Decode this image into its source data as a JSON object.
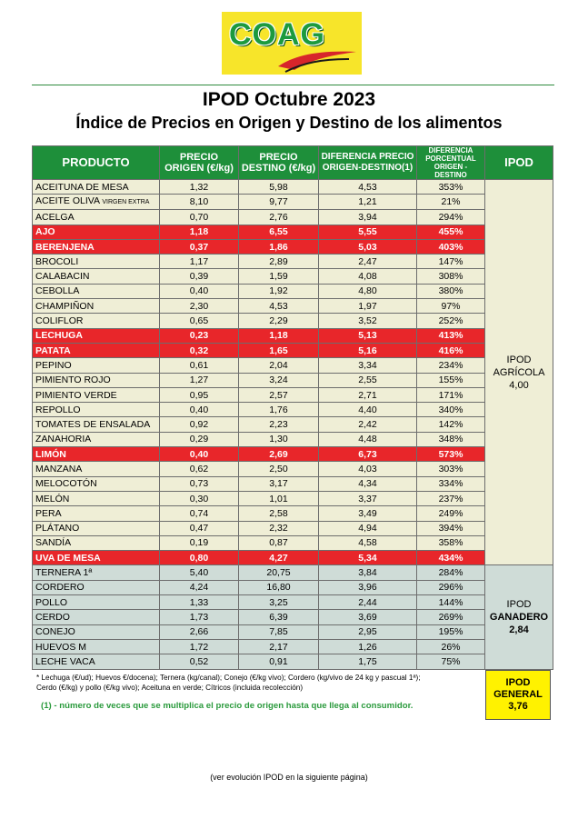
{
  "logo": {
    "text": "COAG"
  },
  "title": "IPOD Octubre 2023",
  "subtitle": "Índice de Precios en Origen y Destino de los alimentos",
  "headers": {
    "producto": "PRODUCTO",
    "origen_1": "PRECIO",
    "origen_2": "ORIGEN (€/kg)",
    "destino_1": "PRECIO",
    "destino_2": "DESTINO (€/kg)",
    "dif_1": "DIFERENCIA PRECIO",
    "dif_2": "ORIGEN-DESTINO(1)",
    "pct_1": "DIFERENCIA",
    "pct_2": "PORCENTUAL",
    "pct_3": "ORIGEN - DESTINO",
    "ipod": "IPOD"
  },
  "agricola_rows": [
    {
      "producto": "ACEITUNA DE MESA",
      "origen": "1,32",
      "destino": "5,98",
      "dif": "4,53",
      "pct": "353%",
      "hl": false
    },
    {
      "producto": "ACEITE OLIVA",
      "producto_small": "VIRGEN EXTRA",
      "origen": "8,10",
      "destino": "9,77",
      "dif": "1,21",
      "pct": "21%",
      "hl": false
    },
    {
      "producto": "ACELGA",
      "origen": "0,70",
      "destino": "2,76",
      "dif": "3,94",
      "pct": "294%",
      "hl": false
    },
    {
      "producto": "AJO",
      "origen": "1,18",
      "destino": "6,55",
      "dif": "5,55",
      "pct": "455%",
      "hl": true
    },
    {
      "producto": "BERENJENA",
      "origen": "0,37",
      "destino": "1,86",
      "dif": "5,03",
      "pct": "403%",
      "hl": true
    },
    {
      "producto": "BROCOLI",
      "origen": "1,17",
      "destino": "2,89",
      "dif": "2,47",
      "pct": "147%",
      "hl": false
    },
    {
      "producto": "CALABACIN",
      "origen": "0,39",
      "destino": "1,59",
      "dif": "4,08",
      "pct": "308%",
      "hl": false
    },
    {
      "producto": "CEBOLLA",
      "origen": "0,40",
      "destino": "1,92",
      "dif": "4,80",
      "pct": "380%",
      "hl": false
    },
    {
      "producto": "CHAMPIÑON",
      "origen": "2,30",
      "destino": "4,53",
      "dif": "1,97",
      "pct": "97%",
      "hl": false
    },
    {
      "producto": "COLIFLOR",
      "origen": "0,65",
      "destino": "2,29",
      "dif": "3,52",
      "pct": "252%",
      "hl": false
    },
    {
      "producto": "LECHUGA",
      "origen": "0,23",
      "destino": "1,18",
      "dif": "5,13",
      "pct": "413%",
      "hl": true
    },
    {
      "producto": "PATATA",
      "origen": "0,32",
      "destino": "1,65",
      "dif": "5,16",
      "pct": "416%",
      "hl": true
    },
    {
      "producto": "PEPINO",
      "origen": "0,61",
      "destino": "2,04",
      "dif": "3,34",
      "pct": "234%",
      "hl": false
    },
    {
      "producto": "PIMIENTO ROJO",
      "origen": "1,27",
      "destino": "3,24",
      "dif": "2,55",
      "pct": "155%",
      "hl": false
    },
    {
      "producto": "PIMIENTO VERDE",
      "origen": "0,95",
      "destino": "2,57",
      "dif": "2,71",
      "pct": "171%",
      "hl": false
    },
    {
      "producto": "REPOLLO",
      "origen": "0,40",
      "destino": "1,76",
      "dif": "4,40",
      "pct": "340%",
      "hl": false
    },
    {
      "producto": "TOMATES DE ENSALADA",
      "origen": "0,92",
      "destino": "2,23",
      "dif": "2,42",
      "pct": "142%",
      "hl": false
    },
    {
      "producto": "ZANAHORIA",
      "origen": "0,29",
      "destino": "1,30",
      "dif": "4,48",
      "pct": "348%",
      "hl": false
    },
    {
      "producto": "LIMÓN",
      "origen": "0,40",
      "destino": "2,69",
      "dif": "6,73",
      "pct": "573%",
      "hl": true
    },
    {
      "producto": "MANZANA",
      "origen": "0,62",
      "destino": "2,50",
      "dif": "4,03",
      "pct": "303%",
      "hl": false
    },
    {
      "producto": "MELOCOTÓN",
      "origen": "0,73",
      "destino": "3,17",
      "dif": "4,34",
      "pct": "334%",
      "hl": false
    },
    {
      "producto": "MELÓN",
      "origen": "0,30",
      "destino": "1,01",
      "dif": "3,37",
      "pct": "237%",
      "hl": false
    },
    {
      "producto": "PERA",
      "origen": "0,74",
      "destino": "2,58",
      "dif": "3,49",
      "pct": "249%",
      "hl": false
    },
    {
      "producto": "PLÁTANO",
      "origen": "0,47",
      "destino": "2,32",
      "dif": "4,94",
      "pct": "394%",
      "hl": false
    },
    {
      "producto": "SANDÍA",
      "origen": "0,19",
      "destino": "0,87",
      "dif": "4,58",
      "pct": "358%",
      "hl": false
    },
    {
      "producto": "UVA DE MESA",
      "origen": "0,80",
      "destino": "4,27",
      "dif": "5,34",
      "pct": "434%",
      "hl": true
    }
  ],
  "ganadero_rows": [
    {
      "producto": "TERNERA 1ª",
      "origen": "5,40",
      "destino": "20,75",
      "dif": "3,84",
      "pct": "284%"
    },
    {
      "producto": "CORDERO",
      "origen": "4,24",
      "destino": "16,80",
      "dif": "3,96",
      "pct": "296%"
    },
    {
      "producto": "POLLO",
      "origen": "1,33",
      "destino": "3,25",
      "dif": "2,44",
      "pct": "144%"
    },
    {
      "producto": "CERDO",
      "origen": "1,73",
      "destino": "6,39",
      "dif": "3,69",
      "pct": "269%"
    },
    {
      "producto": "CONEJO",
      "origen": "2,66",
      "destino": "7,85",
      "dif": "2,95",
      "pct": "195%"
    },
    {
      "producto": "HUEVOS M",
      "origen": "1,72",
      "destino": "2,17",
      "dif": "1,26",
      "pct": "26%"
    },
    {
      "producto": "LECHE VACA",
      "origen": "0,52",
      "destino": "0,91",
      "dif": "1,75",
      "pct": "75%"
    }
  ],
  "ipod_agricola": {
    "l1": "IPOD",
    "l2": "AGRÍCOLA",
    "value": "4,00"
  },
  "ipod_ganadero": {
    "l1": "IPOD",
    "l2": "GANADERO",
    "value": "2,84"
  },
  "ipod_general": {
    "l1": "IPOD",
    "l2": "GENERAL",
    "value": "3,76"
  },
  "notes": {
    "line1": "* Lechuga (€/ud); Huevos €/docena); Ternera (kg/canal); Conejo (€/kg vivo); Cordero (kg/vivo de 24 kg y pascual 1ª);",
    "line2": "Cerdo (€/kg) y pollo (€/kg vivo); Aceituna en verde; Cítricos (incluida recolección)"
  },
  "green_note": "(1) - número de veces que se multiplica el precio de origen hasta que llega al consumidor.",
  "footer": "(ver evolución IPOD en la siguiente página)",
  "colors": {
    "header_green": "#1e8f3a",
    "highlight_red": "#e8262a",
    "agricola_bg": "#efeed6",
    "ganadero_bg": "#cfdcd7",
    "general_yellow": "#fff200"
  }
}
